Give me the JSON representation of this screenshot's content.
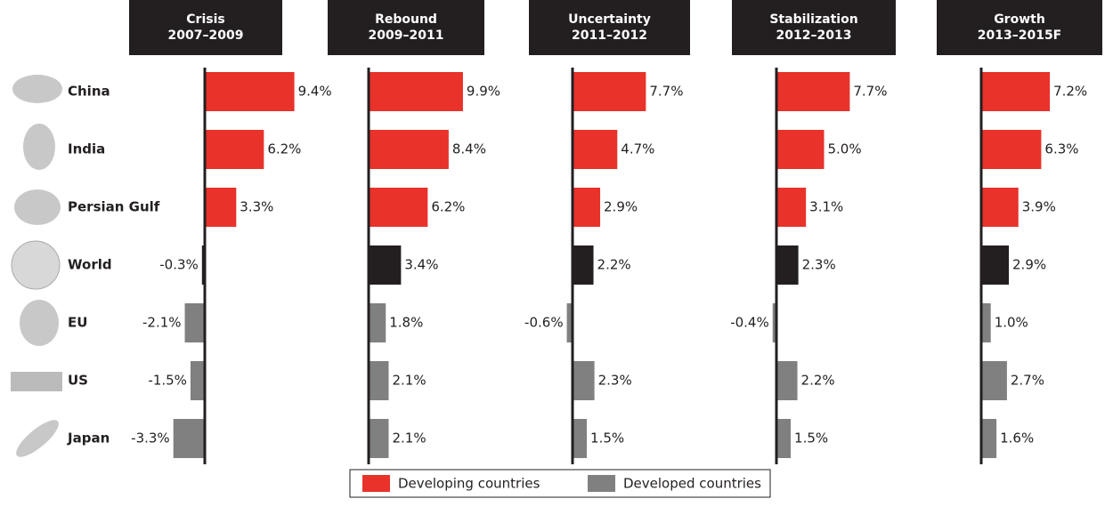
{
  "chart_data": {
    "type": "bar",
    "orientation": "horizontal",
    "categories": [
      "China",
      "India",
      "Persian Gulf",
      "World",
      "EU",
      "US",
      "Japan"
    ],
    "colors": [
      "#e8322a",
      "#e8322a",
      "#e8322a",
      "#231f20",
      "#808080",
      "#808080",
      "#808080"
    ],
    "panels": [
      {
        "title": "Crisis",
        "subtitle": "2007–2009",
        "values": [
          9.4,
          6.2,
          3.3,
          -0.3,
          -2.1,
          -1.5,
          -3.3
        ],
        "value_labels": [
          "9.4%",
          "6.2%",
          "3.3%",
          "-0.3%",
          "-2.1%",
          "-1.5%",
          "-3.3%"
        ]
      },
      {
        "title": "Rebound",
        "subtitle": "2009–2011",
        "values": [
          9.9,
          8.4,
          6.2,
          3.4,
          1.8,
          2.1,
          2.1
        ],
        "value_labels": [
          "9.9%",
          "8.4%",
          "6.2%",
          "3.4%",
          "1.8%",
          "2.1%",
          "2.1%"
        ]
      },
      {
        "title": "Uncertainty",
        "subtitle": "2011–2012",
        "values": [
          7.7,
          4.7,
          2.9,
          2.2,
          -0.6,
          2.3,
          1.5
        ],
        "value_labels": [
          "7.7%",
          "4.7%",
          "2.9%",
          "2.2%",
          "-0.6%",
          "2.3%",
          "1.5%"
        ]
      },
      {
        "title": "Stabilization",
        "subtitle": "2012–2013",
        "values": [
          7.7,
          5.0,
          3.1,
          2.3,
          -0.4,
          2.2,
          1.5
        ],
        "value_labels": [
          "7.7%",
          "5.0%",
          "3.1%",
          "2.3%",
          "-0.4%",
          "2.2%",
          "1.5%"
        ]
      },
      {
        "title": "Growth",
        "subtitle": "2013–2015F",
        "values": [
          7.2,
          6.3,
          3.9,
          2.9,
          1.0,
          2.7,
          1.6
        ],
        "value_labels": [
          "7.2%",
          "6.3%",
          "3.9%",
          "2.9%",
          "1.0%",
          "2.7%",
          "1.6%"
        ]
      }
    ],
    "legend": [
      {
        "name": "Developing countries",
        "color": "#e8322a"
      },
      {
        "name": "Developed countries",
        "color": "#808080"
      }
    ]
  }
}
